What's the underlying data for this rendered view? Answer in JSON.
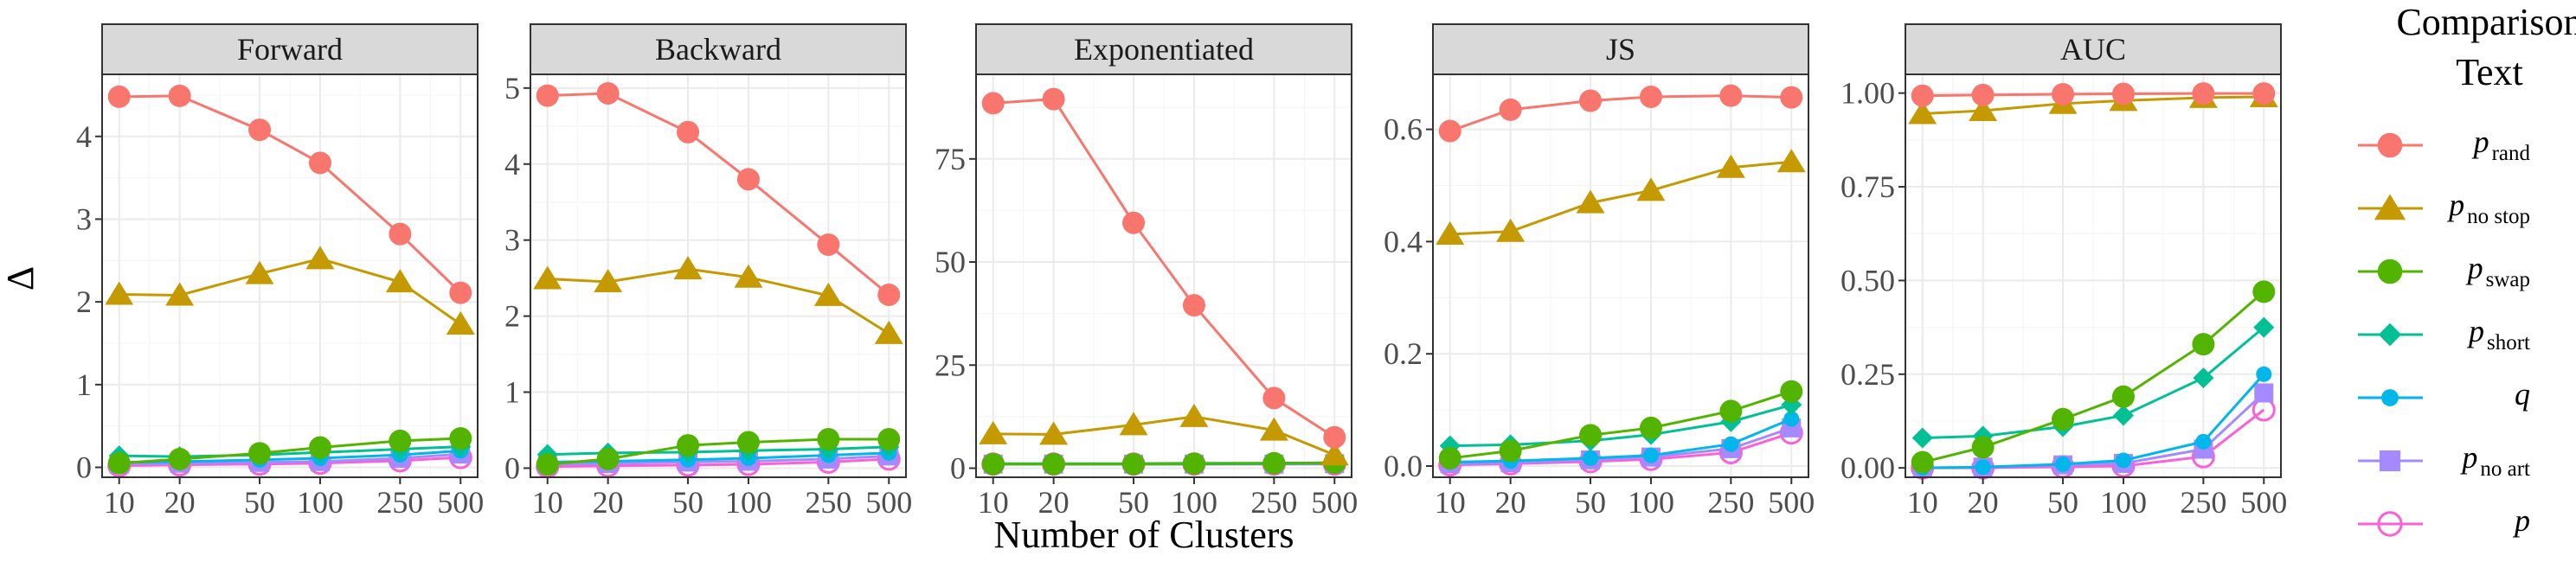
{
  "chart_data": {
    "type": "line",
    "title": "",
    "xlabel": "Number of Clusters",
    "ylabel": "Δ",
    "x": [
      10,
      20,
      50,
      100,
      250,
      500
    ],
    "x_tick_labels": [
      "10",
      "20",
      "50",
      "100",
      "250",
      "500"
    ],
    "x_scale": "log",
    "grid": true,
    "legend": {
      "title_lines": [
        "Comparison",
        "Text"
      ],
      "position": "right",
      "entries": [
        {
          "key": "p_rand",
          "base": "p",
          "sub": "rand",
          "color": "#F8766D",
          "shape": "circle"
        },
        {
          "key": "p_no_stop",
          "base": "p",
          "sub": "no stop",
          "color": "#C49A00",
          "shape": "triangle"
        },
        {
          "key": "p_swap",
          "base": "p",
          "sub": "swap",
          "color": "#53B400",
          "shape": "circle"
        },
        {
          "key": "p_short",
          "base": "p",
          "sub": "short",
          "color": "#00C094",
          "shape": "diamond"
        },
        {
          "key": "q",
          "base": "q",
          "sub": "",
          "color": "#00B6EB",
          "shape": "small-circle"
        },
        {
          "key": "p_no_art",
          "base": "p",
          "sub": "no art",
          "color": "#A58AFF",
          "shape": "square"
        },
        {
          "key": "p",
          "base": "p",
          "sub": "",
          "color": "#FB61D7",
          "shape": "open-circle"
        }
      ]
    },
    "panels": [
      {
        "title": "Forward",
        "ylim": [
          -0.12,
          4.75
        ],
        "yticks": [
          0,
          1,
          2,
          3,
          4
        ],
        "y_tick_labels": [
          "0",
          "1",
          "2",
          "3",
          "4"
        ],
        "series": [
          {
            "name": "p_rand",
            "values": [
              4.48,
              4.49,
              4.08,
              3.68,
              2.82,
              2.11
            ]
          },
          {
            "name": "p_no_stop",
            "values": [
              2.09,
              2.08,
              2.34,
              2.52,
              2.24,
              1.73
            ]
          },
          {
            "name": "p_swap",
            "values": [
              0.05,
              0.1,
              0.17,
              0.24,
              0.32,
              0.35
            ]
          },
          {
            "name": "p_short",
            "values": [
              0.14,
              0.13,
              0.15,
              0.18,
              0.22,
              0.25
            ]
          },
          {
            "name": "q",
            "values": [
              0.06,
              0.07,
              0.09,
              0.11,
              0.15,
              0.2
            ]
          },
          {
            "name": "p_no_art",
            "values": [
              0.04,
              0.05,
              0.06,
              0.07,
              0.11,
              0.16
            ]
          },
          {
            "name": "p",
            "values": [
              0.02,
              0.03,
              0.04,
              0.05,
              0.08,
              0.12
            ]
          }
        ]
      },
      {
        "title": "Backward",
        "ylim": [
          -0.12,
          5.18
        ],
        "yticks": [
          0,
          1,
          2,
          3,
          4,
          5
        ],
        "y_tick_labels": [
          "0",
          "1",
          "2",
          "3",
          "4",
          "5"
        ],
        "series": [
          {
            "name": "p_rand",
            "values": [
              4.9,
              4.93,
              4.42,
              3.8,
              2.94,
              2.28
            ]
          },
          {
            "name": "p_no_stop",
            "values": [
              2.49,
              2.45,
              2.62,
              2.51,
              2.27,
              1.77
            ]
          },
          {
            "name": "p_swap",
            "values": [
              0.05,
              0.12,
              0.3,
              0.34,
              0.38,
              0.38
            ]
          },
          {
            "name": "p_short",
            "values": [
              0.18,
              0.2,
              0.21,
              0.23,
              0.25,
              0.28
            ]
          },
          {
            "name": "q",
            "values": [
              0.08,
              0.09,
              0.11,
              0.13,
              0.17,
              0.2
            ]
          },
          {
            "name": "p_no_art",
            "values": [
              0.05,
              0.06,
              0.08,
              0.09,
              0.12,
              0.16
            ]
          },
          {
            "name": "p",
            "values": [
              0.02,
              0.03,
              0.04,
              0.05,
              0.08,
              0.12
            ]
          }
        ]
      },
      {
        "title": "Exponentiated",
        "ylim": [
          -2.2,
          95.5
        ],
        "yticks": [
          0,
          25,
          50,
          75
        ],
        "y_tick_labels": [
          "0",
          "25",
          "50",
          "75"
        ],
        "series": [
          {
            "name": "p_rand",
            "values": [
              88.5,
              89.5,
              59.5,
              39.5,
              17.0,
              7.5
            ]
          },
          {
            "name": "p_no_stop",
            "values": [
              8.3,
              8.2,
              10.5,
              12.5,
              9.2,
              3.2
            ]
          },
          {
            "name": "p_swap",
            "values": [
              1.0,
              1.0,
              1.0,
              1.1,
              1.2,
              1.3
            ]
          },
          {
            "name": "p_short",
            "values": [
              1.1,
              1.1,
              1.1,
              1.2,
              1.2,
              1.3
            ]
          },
          {
            "name": "q",
            "values": [
              1.0,
              1.0,
              1.0,
              1.0,
              1.1,
              1.2
            ]
          },
          {
            "name": "p_no_art",
            "values": [
              1.0,
              1.0,
              1.0,
              1.0,
              1.0,
              1.1
            ]
          },
          {
            "name": "p",
            "values": [
              1.0,
              1.0,
              1.0,
              1.0,
              1.0,
              1.0
            ]
          }
        ]
      },
      {
        "title": "JS",
        "ylim": [
          -0.02,
          0.698
        ],
        "yticks": [
          0.0,
          0.2,
          0.4,
          0.6
        ],
        "y_tick_labels": [
          "0.0",
          "0.2",
          "0.4",
          "0.6"
        ],
        "series": [
          {
            "name": "p_rand",
            "values": [
              0.597,
              0.635,
              0.651,
              0.658,
              0.66,
              0.657
            ]
          },
          {
            "name": "p_no_stop",
            "values": [
              0.413,
              0.418,
              0.469,
              0.491,
              0.532,
              0.542
            ]
          },
          {
            "name": "p_swap",
            "values": [
              0.014,
              0.027,
              0.055,
              0.068,
              0.098,
              0.133
            ]
          },
          {
            "name": "p_short",
            "values": [
              0.036,
              0.038,
              0.045,
              0.056,
              0.079,
              0.109
            ]
          },
          {
            "name": "q",
            "values": [
              0.007,
              0.009,
              0.014,
              0.019,
              0.039,
              0.084
            ]
          },
          {
            "name": "p_no_art",
            "values": [
              0.004,
              0.006,
              0.011,
              0.016,
              0.031,
              0.068
            ]
          },
          {
            "name": "p",
            "values": [
              0.002,
              0.004,
              0.008,
              0.012,
              0.024,
              0.059
            ]
          }
        ]
      },
      {
        "title": "AUC",
        "ylim": [
          -0.025,
          1.05
        ],
        "yticks": [
          0.0,
          0.25,
          0.5,
          0.75,
          1.0
        ],
        "y_tick_labels": [
          "0.00",
          "0.25",
          "0.50",
          "0.75",
          "1.00"
        ],
        "series": [
          {
            "name": "p_rand",
            "values": [
              0.993,
              0.995,
              0.997,
              0.998,
              0.999,
              0.999
            ]
          },
          {
            "name": "p_no_stop",
            "values": [
              0.945,
              0.953,
              0.972,
              0.98,
              0.988,
              0.99
            ]
          },
          {
            "name": "p_swap",
            "values": [
              0.015,
              0.055,
              0.13,
              0.19,
              0.33,
              0.47
            ]
          },
          {
            "name": "p_short",
            "values": [
              0.08,
              0.085,
              0.11,
              0.14,
              0.24,
              0.375
            ]
          },
          {
            "name": "q",
            "values": [
              0.0,
              0.002,
              0.01,
              0.02,
              0.07,
              0.25
            ]
          },
          {
            "name": "p_no_art",
            "values": [
              0.0,
              0.002,
              0.008,
              0.012,
              0.05,
              0.2
            ]
          },
          {
            "name": "p",
            "values": [
              0.0,
              0.0,
              0.003,
              0.005,
              0.03,
              0.155
            ]
          }
        ]
      }
    ]
  }
}
